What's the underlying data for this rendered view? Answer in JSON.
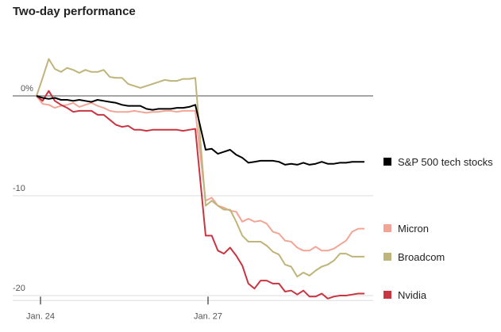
{
  "chart_data": {
    "type": "line",
    "title": "Two-day performance",
    "xlabel": "",
    "ylabel": "",
    "x_tick_labels": [
      "Jan. 24",
      "Jan. 27"
    ],
    "y_ticks": [
      0,
      -10,
      -20
    ],
    "y_tick_labels": [
      "0%",
      "-10",
      "-20"
    ],
    "ylim": [
      -20.5,
      6
    ],
    "grid": true,
    "legend_placement": "right, at line ends",
    "points_per_day": 14,
    "series": [
      {
        "name": "S&P 500 tech stocks",
        "color": "#000000",
        "values": [
          0,
          -0.2,
          -0.3,
          -0.2,
          -0.4,
          -0.4,
          -0.5,
          -0.4,
          -0.5,
          -0.6,
          -0.4,
          -0.5,
          -0.6,
          -0.7,
          -0.9,
          -1.0,
          -1.0,
          -1.0,
          -1.3,
          -1.4,
          -1.3,
          -1.3,
          -1.3,
          -1.2,
          -1.2,
          -1.1,
          -0.9,
          -5.4,
          -5.3,
          -5.8,
          -5.6,
          -5.4,
          -5.9,
          -6.2,
          -6.7,
          -6.6,
          -6.5,
          -6.5,
          -6.5,
          -6.6,
          -6.9,
          -6.8,
          -6.9,
          -6.7,
          -6.9,
          -6.8,
          -6.6,
          -6.8,
          -6.8,
          -6.7,
          -6.7,
          -6.6,
          -6.6,
          -6.6
        ]
      },
      {
        "name": "Micron",
        "color": "#f2a595",
        "values": [
          0,
          -0.8,
          -0.9,
          -1.2,
          -1.0,
          -0.9,
          -0.7,
          -1.1,
          -0.9,
          -0.7,
          -1.0,
          -1.2,
          -1.5,
          -1.6,
          -1.6,
          -1.6,
          -1.5,
          -1.6,
          -1.7,
          -1.6,
          -1.6,
          -1.5,
          -1.5,
          -1.6,
          -1.5,
          -1.5,
          -1.5,
          -10.5,
          -10.2,
          -11.0,
          -11.2,
          -11.5,
          -11.6,
          -12.6,
          -12.3,
          -12.6,
          -12.5,
          -12.8,
          -13.6,
          -13.8,
          -14.5,
          -14.6,
          -15.2,
          -15.5,
          -15.5,
          -15.1,
          -15.5,
          -15.5,
          -15.3,
          -14.9,
          -14.5,
          -13.6,
          -13.3,
          -13.3
        ]
      },
      {
        "name": "Broadcom",
        "color": "#bfb47a",
        "values": [
          0,
          1.8,
          3.7,
          2.7,
          2.4,
          2.8,
          2.6,
          2.3,
          2.6,
          2.4,
          2.4,
          2.6,
          1.9,
          1.8,
          1.8,
          1.2,
          1.0,
          0.8,
          1.0,
          1.2,
          1.4,
          1.6,
          1.5,
          1.5,
          1.7,
          1.7,
          1.8,
          -11.0,
          -10.5,
          -11.0,
          -11.4,
          -11.4,
          -12.6,
          -14.0,
          -14.6,
          -14.6,
          -14.6,
          -15.0,
          -15.6,
          -15.9,
          -16.9,
          -17.1,
          -18.1,
          -17.7,
          -18.0,
          -17.5,
          -17.1,
          -16.9,
          -16.5,
          -15.8,
          -15.8,
          -16.1,
          -16.1,
          -16.1
        ]
      },
      {
        "name": "Nvidia",
        "color": "#c83541",
        "values": [
          0,
          -0.5,
          0.5,
          -0.5,
          -0.9,
          -1.2,
          -1.6,
          -1.5,
          -1.5,
          -1.5,
          -1.9,
          -1.9,
          -2.4,
          -2.9,
          -3.1,
          -3.0,
          -3.4,
          -3.4,
          -3.5,
          -3.4,
          -3.4,
          -3.4,
          -3.4,
          -3.4,
          -3.5,
          -3.4,
          -3.3,
          -14.0,
          -14.0,
          -15.5,
          -15.8,
          -15.2,
          -16.0,
          -17.0,
          -18.8,
          -19.3,
          -18.5,
          -18.5,
          -18.8,
          -18.8,
          -19.6,
          -19.5,
          -19.9,
          -19.5,
          -20.1,
          -20.1,
          -19.8,
          -20.3,
          -20.1,
          -20.0,
          -20.0,
          -19.9,
          -19.8,
          -19.8
        ]
      }
    ]
  }
}
